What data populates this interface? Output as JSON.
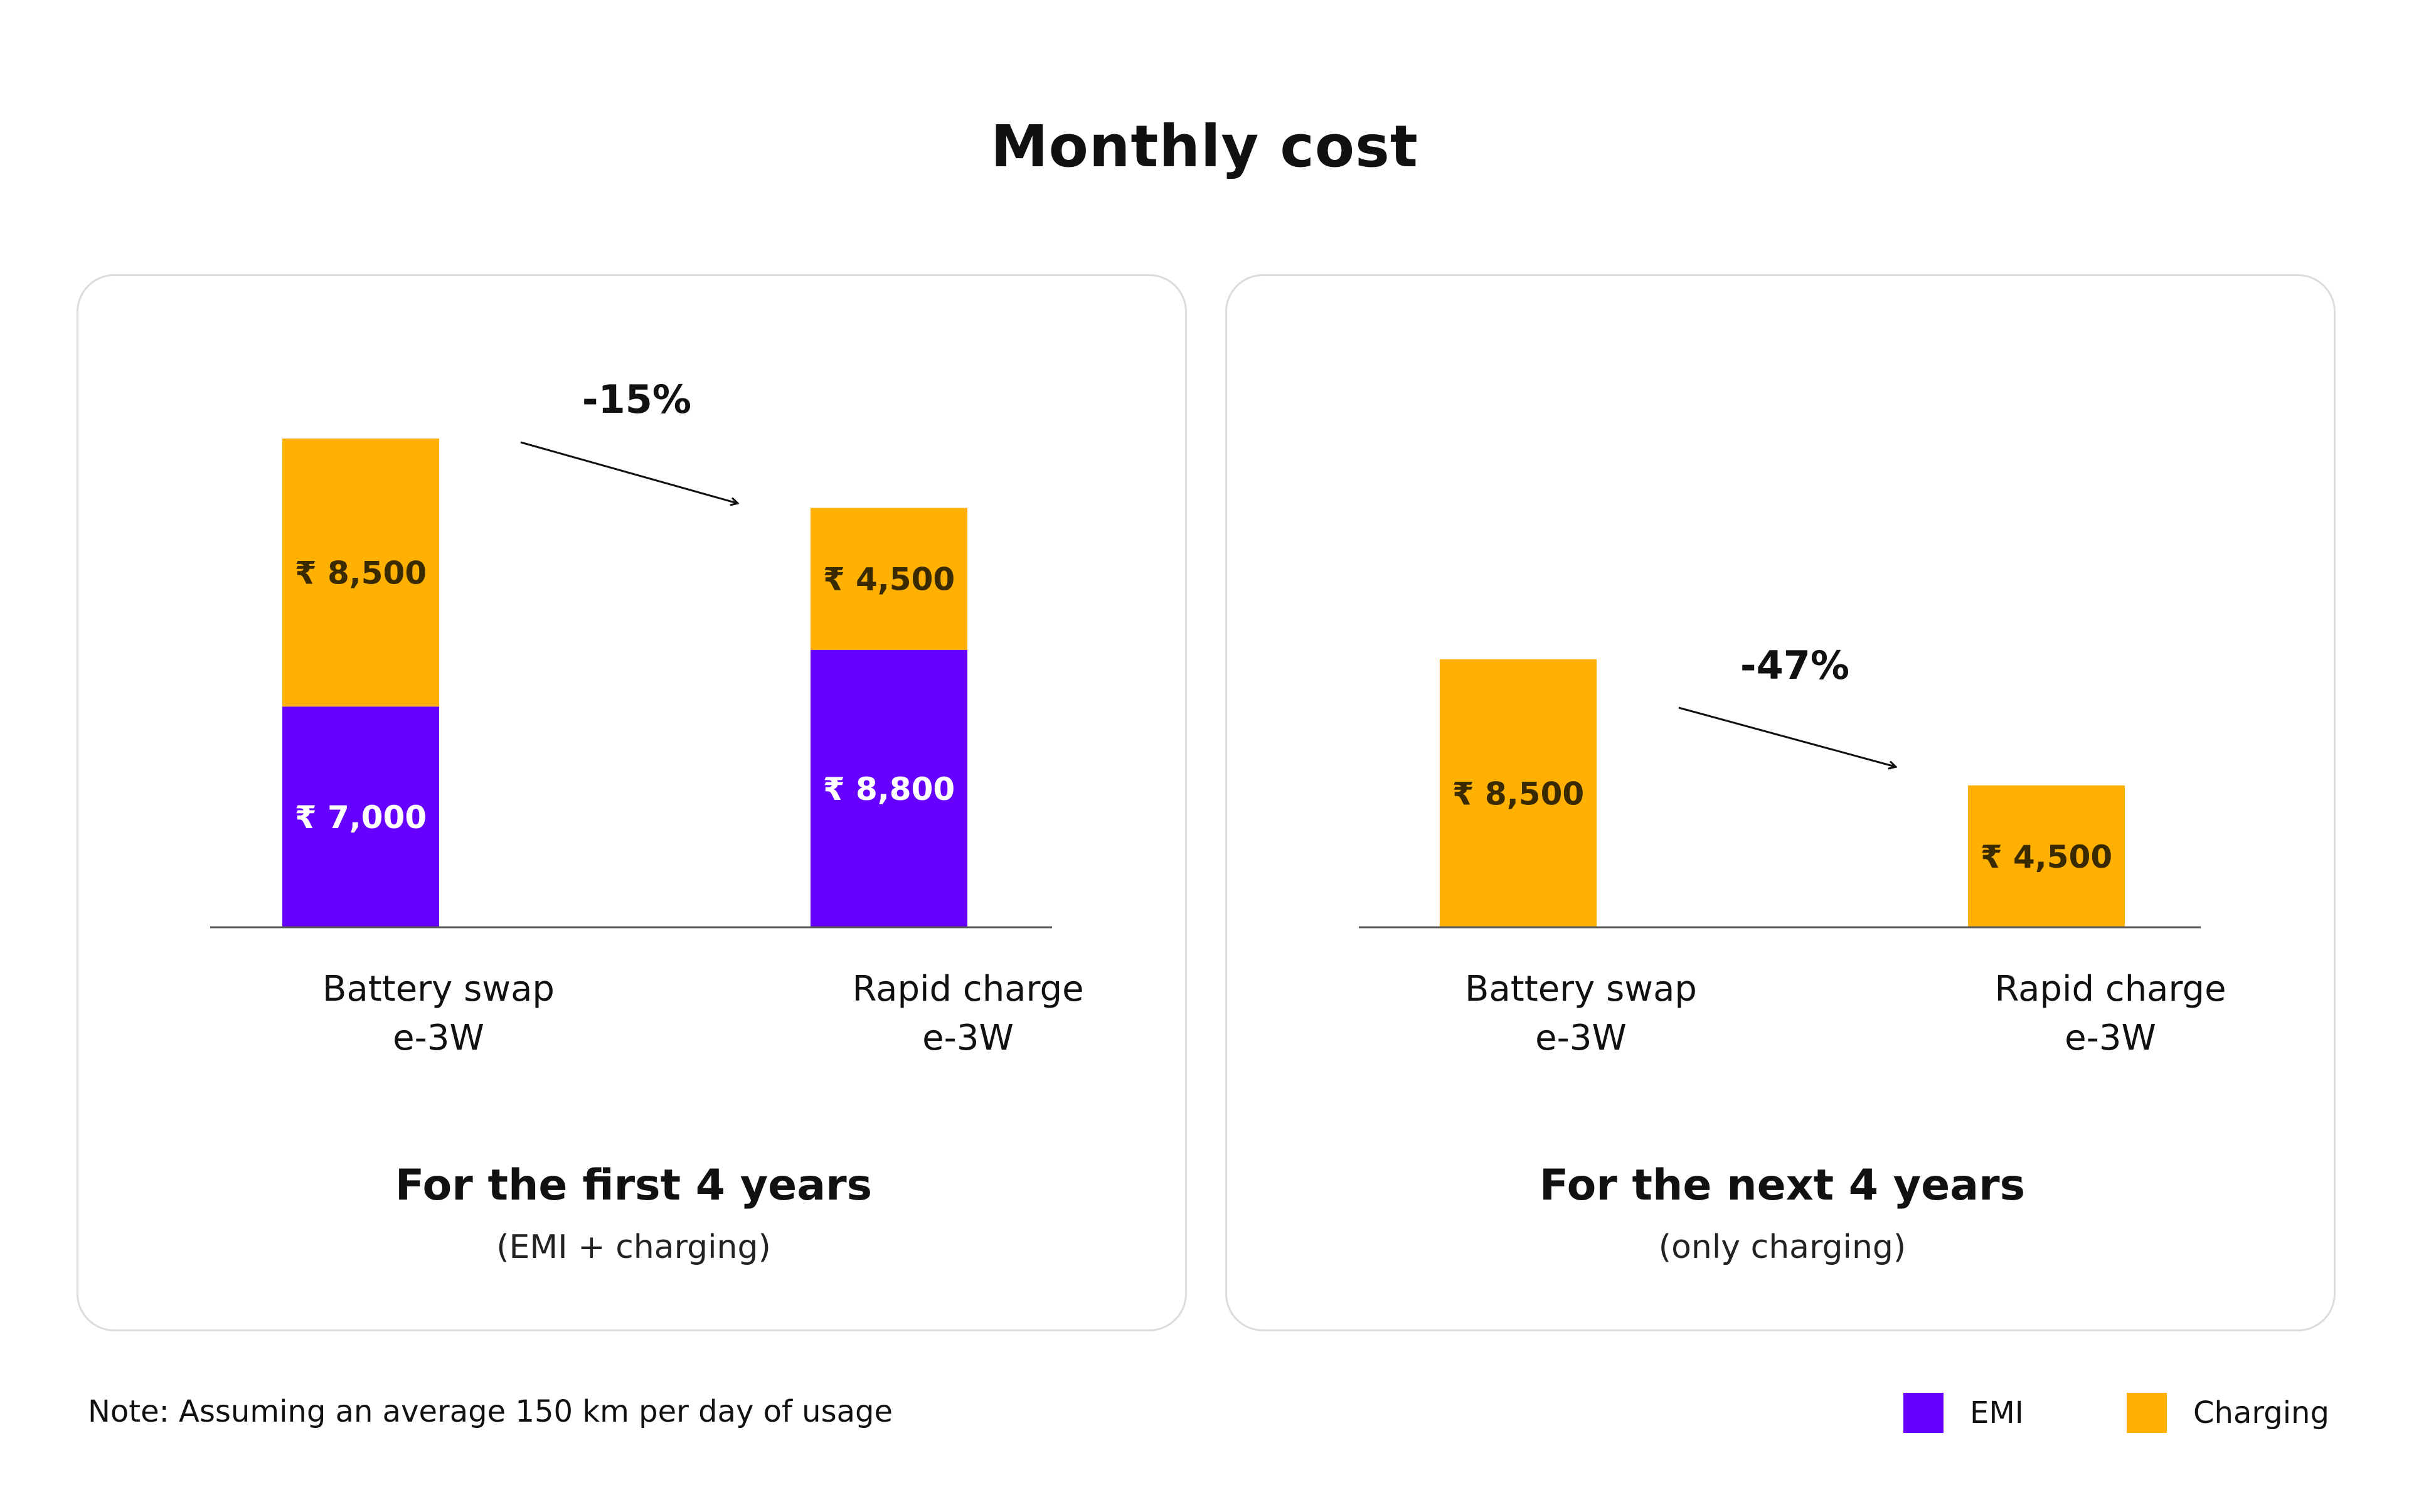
{
  "title": "Monthly cost",
  "colors": {
    "emi": "#6600FF",
    "charging": "#FFB000",
    "axis": "#555555"
  },
  "chart_data": [
    {
      "type": "bar",
      "stacked": true,
      "categories": [
        [
          "Battery swap",
          "e-3W"
        ],
        [
          "Rapid charge",
          "e-3W"
        ]
      ],
      "series": [
        {
          "name": "EMI",
          "values": [
            7000,
            8800
          ],
          "labels": [
            "₹ 7,000",
            "₹ 8,800"
          ]
        },
        {
          "name": "Charging",
          "values": [
            8500,
            4500
          ],
          "labels": [
            "₹ 8,500",
            "₹ 4,500"
          ]
        }
      ],
      "annotation": "-15%",
      "caption": "For the first 4 years",
      "subcaption": "(EMI + charging)"
    },
    {
      "type": "bar",
      "stacked": true,
      "categories": [
        [
          "Battery swap",
          "e-3W"
        ],
        [
          "Rapid charge",
          "e-3W"
        ]
      ],
      "series": [
        {
          "name": "Charging",
          "values": [
            8500,
            4500
          ],
          "labels": [
            "₹ 8,500",
            "₹ 4,500"
          ]
        }
      ],
      "annotation": "-47%",
      "caption": "For the next 4 years",
      "subcaption": "(only charging)"
    }
  ],
  "legend": [
    {
      "name": "EMI",
      "color": "#6600FF"
    },
    {
      "name": "Charging",
      "color": "#FFB000"
    }
  ],
  "note": "Note: Assuming an average 150 km per day of usage"
}
